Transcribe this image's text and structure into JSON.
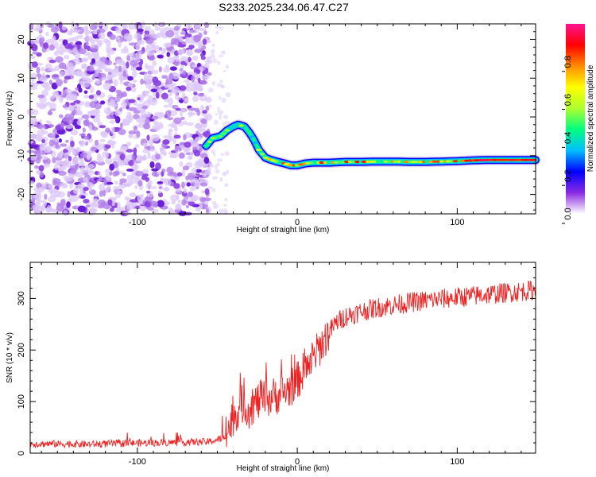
{
  "title": "S233.2025.234.06.47.C27",
  "chart_data": [
    {
      "type": "heatmap",
      "name": "spectrogram",
      "xlabel": "Height of straight line (km)",
      "ylabel": "Frequency (Hz)",
      "xlim": [
        -167,
        149
      ],
      "ylim": [
        -25,
        24
      ],
      "xticks": [
        -100,
        0,
        100
      ],
      "yticks": [
        -20,
        -10,
        0,
        10,
        20
      ],
      "noise_region_x": [
        -167,
        -55
      ],
      "ridge": {
        "x": [
          -57,
          -53,
          -48,
          -44,
          -40,
          -37,
          -33,
          -30,
          -27,
          -24,
          -20,
          -17,
          -13,
          -8,
          -4,
          0,
          5,
          10,
          20,
          30,
          40,
          50,
          60,
          70,
          80,
          90,
          100,
          110,
          120,
          130,
          140,
          149
        ],
        "y": [
          -7.5,
          -5.5,
          -5,
          -3.5,
          -2.5,
          -2,
          -2.5,
          -4,
          -6,
          -8.5,
          -10.5,
          -11,
          -11.5,
          -12,
          -12.5,
          -12.5,
          -12,
          -11.8,
          -11.8,
          -11.6,
          -11.6,
          -11.5,
          -11.5,
          -11.6,
          -11.6,
          -11.5,
          -11.4,
          -11.2,
          -11.1,
          -11.1,
          -11.1,
          -11.1
        ]
      },
      "colorbar": {
        "label": "Normalized spectral amplitude",
        "range": [
          0,
          1
        ],
        "ticks": [
          "0.0",
          "0.2",
          "0.4",
          "0.6",
          "0.8"
        ],
        "colors": [
          "#ffffff",
          "#8a2be2",
          "#0000ff",
          "#00bfff",
          "#00ff7f",
          "#adff2f",
          "#ffff00",
          "#ff8c00",
          "#ff0000",
          "#ff1493"
        ]
      }
    },
    {
      "type": "line",
      "name": "snr",
      "xlabel": "Height of straight line (km)",
      "ylabel": "SNR (10 * v/v)",
      "xlim": [
        -167,
        149
      ],
      "ylim": [
        0,
        370
      ],
      "xticks": [
        -100,
        0,
        100
      ],
      "yticks": [
        0,
        100,
        200,
        300
      ],
      "series": [
        {
          "color": "#ee2222",
          "x": [
            -167,
            -150,
            -130,
            -110,
            -90,
            -70,
            -55,
            -45,
            -40,
            -35,
            -30,
            -25,
            -20,
            -15,
            -10,
            -5,
            0,
            5,
            10,
            15,
            20,
            25,
            30,
            40,
            50,
            60,
            70,
            80,
            90,
            100,
            110,
            120,
            130,
            140,
            149
          ],
          "y": [
            18,
            18,
            17,
            19,
            20,
            21,
            22,
            30,
            70,
            95,
            85,
            100,
            105,
            110,
            115,
            125,
            140,
            165,
            185,
            210,
            235,
            255,
            265,
            275,
            282,
            287,
            292,
            296,
            299,
            302,
            305,
            308,
            311,
            314,
            316
          ]
        }
      ]
    }
  ]
}
